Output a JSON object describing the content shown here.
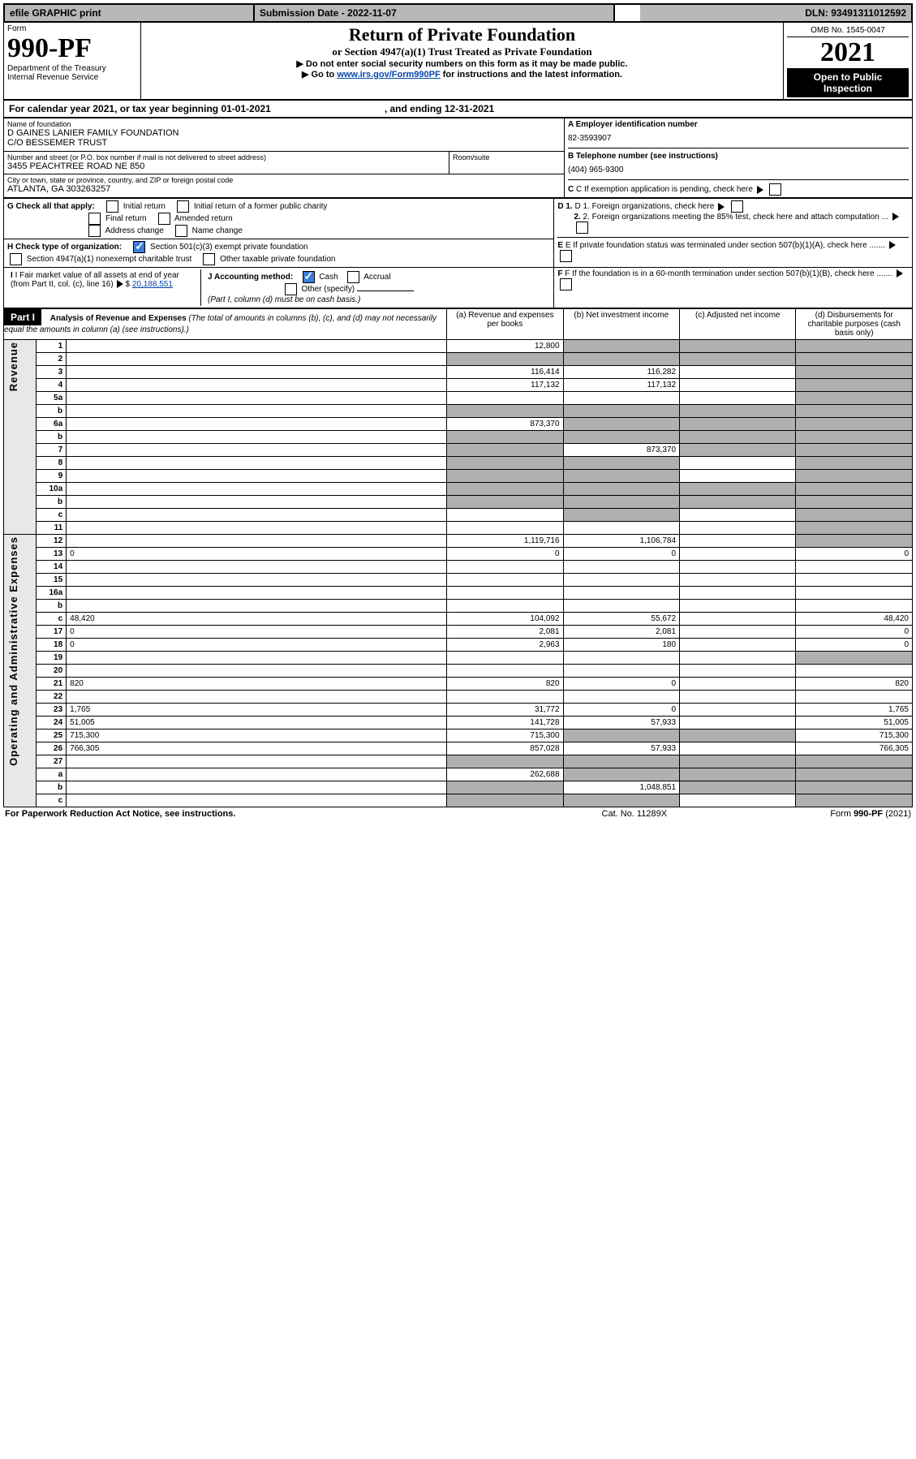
{
  "topbar": {
    "efile": "efile GRAPHIC print",
    "subm_label": "Submission Date",
    "subm_date": "2022-11-07",
    "dln_label": "DLN:",
    "dln": "93491311012592"
  },
  "header": {
    "form": "Form",
    "formnum": "990-PF",
    "dept1": "Department of the Treasury",
    "dept2": "Internal Revenue Service",
    "title": "Return of Private Foundation",
    "subtitle": "or Section 4947(a)(1) Trust Treated as Private Foundation",
    "note1": "▶ Do not enter social security numbers on this form as it may be made public.",
    "note2": "▶ Go to ",
    "link": "www.irs.gov/Form990PF",
    "note2b": " for instructions and the latest information.",
    "omb": "OMB No. 1545-0047",
    "year": "2021",
    "open": "Open to Public Inspection"
  },
  "cal": {
    "pre": "For calendar year 2021, or tax year beginning ",
    "begin": "01-01-2021",
    "mid": ", and ending ",
    "end": "12-31-2021"
  },
  "info": {
    "name_lbl": "Name of foundation",
    "name1": "D GAINES LANIER FAMILY FOUNDATION",
    "name2": "C/O BESSEMER TRUST",
    "addr_lbl": "Number and street (or P.O. box number if mail is not delivered to street address)",
    "addr": "3455 PEACHTREE ROAD NE 850",
    "room_lbl": "Room/suite",
    "city_lbl": "City or town, state or province, country, and ZIP or foreign postal code",
    "city": "ATLANTA, GA  303263257",
    "a_lbl": "A Employer identification number",
    "a_val": "82-3593907",
    "b_lbl": "B Telephone number (see instructions)",
    "b_val": "(404) 965-9300",
    "c_lbl": "C If exemption application is pending, check here",
    "d1": "D 1. Foreign organizations, check here",
    "d2": "2. Foreign organizations meeting the 85% test, check here and attach computation ...",
    "e": "E  If private foundation status was terminated under section 507(b)(1)(A), check here .......",
    "f": "F  If the foundation is in a 60-month termination under section 507(b)(1)(B), check here .......",
    "g": "G Check all that apply:",
    "g1": "Initial return",
    "g2": "Final return",
    "g3": "Address change",
    "g4": "Initial return of a former public charity",
    "g5": "Amended return",
    "g6": "Name change",
    "h": "H Check type of organization:",
    "h1": "Section 501(c)(3) exempt private foundation",
    "h2": "Section 4947(a)(1) nonexempt charitable trust",
    "h3": "Other taxable private foundation",
    "i": "I Fair market value of all assets at end of year (from Part II, col. (c), line 16)",
    "i_val": "20,188,551",
    "j": "J Accounting method:",
    "j1": "Cash",
    "j2": "Accrual",
    "j3": "Other (specify)",
    "j_note": "(Part I, column (d) must be on cash basis.)"
  },
  "part1": {
    "hdr": "Part I",
    "title": "Analysis of Revenue and Expenses",
    "title_note": "(The total of amounts in columns (b), (c), and (d) may not necessarily equal the amounts in column (a) (see instructions).)",
    "col_a": "(a)   Revenue and expenses per books",
    "col_b": "(b)   Net investment income",
    "col_c": "(c)   Adjusted net income",
    "col_d": "(d)   Disbursements for charitable purposes (cash basis only)",
    "vrev": "Revenue",
    "vexp": "Operating and Administrative Expenses"
  },
  "rows": [
    {
      "n": "1",
      "d": "",
      "a": "12,800",
      "b": "",
      "c": "",
      "db": 1,
      "dc": 1,
      "dd": 1
    },
    {
      "n": "2",
      "d": "",
      "a": "",
      "b": "",
      "c": "",
      "da": 1,
      "db": 1,
      "dc": 1,
      "dd": 1
    },
    {
      "n": "3",
      "d": "",
      "a": "116,414",
      "b": "116,282",
      "c": "",
      "dd": 1
    },
    {
      "n": "4",
      "d": "",
      "a": "117,132",
      "b": "117,132",
      "c": "",
      "dd": 1
    },
    {
      "n": "5a",
      "d": "",
      "a": "",
      "b": "",
      "c": "",
      "dd": 1
    },
    {
      "n": "b",
      "d": "",
      "a": "",
      "b": "",
      "c": "",
      "da": 1,
      "db": 1,
      "dc": 1,
      "dd": 1
    },
    {
      "n": "6a",
      "d": "",
      "a": "873,370",
      "b": "",
      "c": "",
      "db": 1,
      "dc": 1,
      "dd": 1
    },
    {
      "n": "b",
      "d": "",
      "a": "",
      "b": "",
      "c": "",
      "da": 1,
      "db": 1,
      "dc": 1,
      "dd": 1
    },
    {
      "n": "7",
      "d": "",
      "a": "",
      "b": "873,370",
      "c": "",
      "da": 1,
      "dc": 1,
      "dd": 1
    },
    {
      "n": "8",
      "d": "",
      "a": "",
      "b": "",
      "c": "",
      "da": 1,
      "db": 1,
      "dd": 1
    },
    {
      "n": "9",
      "d": "",
      "a": "",
      "b": "",
      "c": "",
      "da": 1,
      "db": 1,
      "dd": 1
    },
    {
      "n": "10a",
      "d": "",
      "a": "",
      "b": "",
      "c": "",
      "da": 1,
      "db": 1,
      "dc": 1,
      "dd": 1
    },
    {
      "n": "b",
      "d": "",
      "a": "",
      "b": "",
      "c": "",
      "da": 1,
      "db": 1,
      "dc": 1,
      "dd": 1
    },
    {
      "n": "c",
      "d": "",
      "a": "",
      "b": "",
      "c": "",
      "db": 1,
      "dd": 1
    },
    {
      "n": "11",
      "d": "",
      "a": "",
      "b": "",
      "c": "",
      "dd": 1
    },
    {
      "n": "12",
      "d": "",
      "a": "1,119,716",
      "b": "1,106,784",
      "c": "",
      "dd": 1
    },
    {
      "n": "13",
      "d": "0",
      "a": "0",
      "b": "0",
      "c": ""
    },
    {
      "n": "14",
      "d": "",
      "a": "",
      "b": "",
      "c": ""
    },
    {
      "n": "15",
      "d": "",
      "a": "",
      "b": "",
      "c": ""
    },
    {
      "n": "16a",
      "d": "",
      "a": "",
      "b": "",
      "c": ""
    },
    {
      "n": "b",
      "d": "",
      "a": "",
      "b": "",
      "c": ""
    },
    {
      "n": "c",
      "d": "48,420",
      "a": "104,092",
      "b": "55,672",
      "c": ""
    },
    {
      "n": "17",
      "d": "0",
      "a": "2,081",
      "b": "2,081",
      "c": ""
    },
    {
      "n": "18",
      "d": "0",
      "a": "2,963",
      "b": "180",
      "c": ""
    },
    {
      "n": "19",
      "d": "",
      "a": "",
      "b": "",
      "c": "",
      "dd": 1
    },
    {
      "n": "20",
      "d": "",
      "a": "",
      "b": "",
      "c": ""
    },
    {
      "n": "21",
      "d": "820",
      "a": "820",
      "b": "0",
      "c": ""
    },
    {
      "n": "22",
      "d": "",
      "a": "",
      "b": "",
      "c": ""
    },
    {
      "n": "23",
      "d": "1,765",
      "a": "31,772",
      "b": "0",
      "c": ""
    },
    {
      "n": "24",
      "d": "51,005",
      "a": "141,728",
      "b": "57,933",
      "c": ""
    },
    {
      "n": "25",
      "d": "715,300",
      "a": "715,300",
      "b": "",
      "c": "",
      "db": 1,
      "dc": 1
    },
    {
      "n": "26",
      "d": "766,305",
      "a": "857,028",
      "b": "57,933",
      "c": ""
    },
    {
      "n": "27",
      "d": "",
      "a": "",
      "b": "",
      "c": "",
      "da": 1,
      "db": 1,
      "dc": 1,
      "dd": 1
    },
    {
      "n": "a",
      "d": "",
      "a": "262,688",
      "b": "",
      "c": "",
      "db": 1,
      "dc": 1,
      "dd": 1
    },
    {
      "n": "b",
      "d": "",
      "a": "",
      "b": "1,048,851",
      "c": "",
      "da": 1,
      "dc": 1,
      "dd": 1
    },
    {
      "n": "c",
      "d": "",
      "a": "",
      "b": "",
      "c": "",
      "da": 1,
      "db": 1,
      "dd": 1
    }
  ],
  "footer": {
    "left": "For Paperwork Reduction Act Notice, see instructions.",
    "mid": "Cat. No. 11289X",
    "right": "Form 990-PF (2021)"
  }
}
